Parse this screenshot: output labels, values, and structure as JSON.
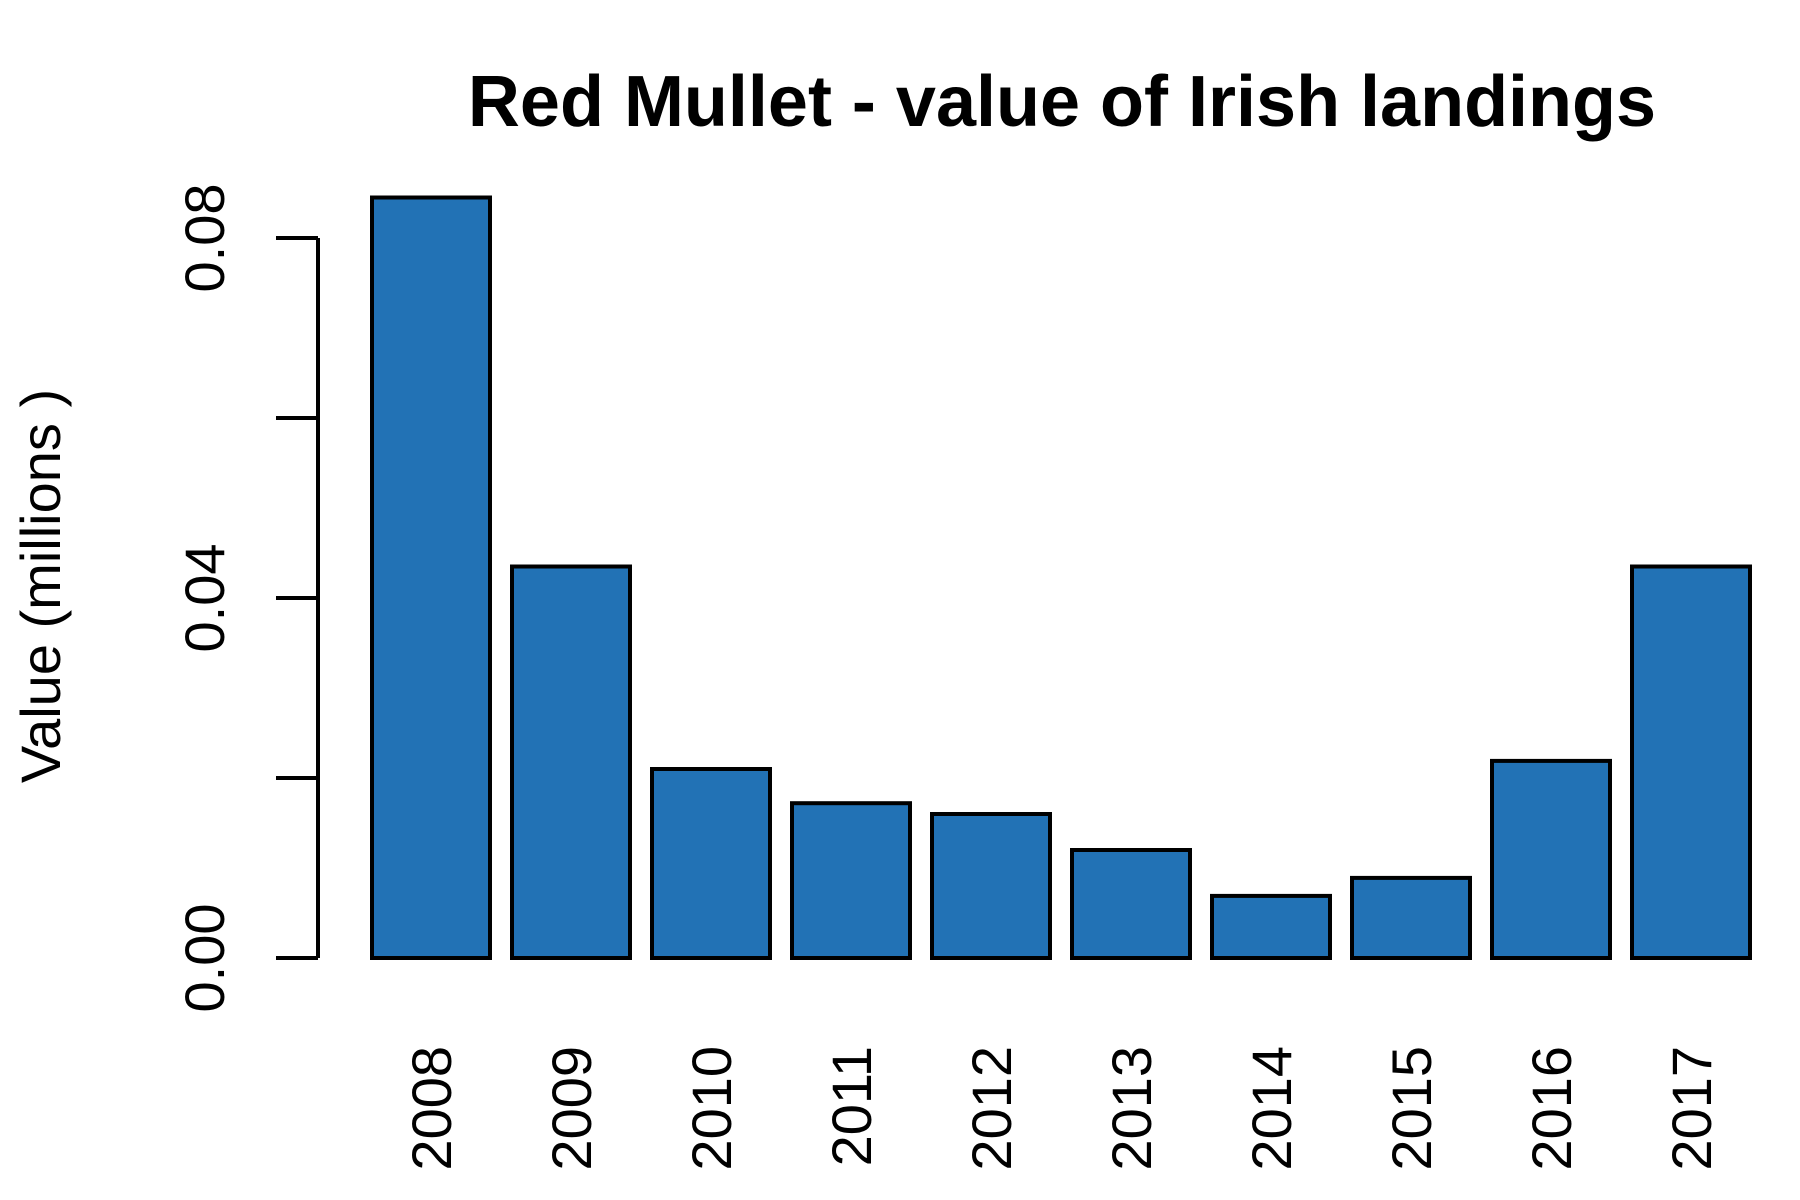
{
  "chart_data": {
    "type": "bar",
    "title": "Red Mullet - value of Irish landings",
    "xlabel": "",
    "ylabel": "Value (millions )",
    "categories": [
      "2008",
      "2009",
      "2010",
      "2011",
      "2012",
      "2013",
      "2014",
      "2015",
      "2016",
      "2017"
    ],
    "values": [
      0.0845,
      0.0435,
      0.021,
      0.0172,
      0.016,
      0.012,
      0.0069,
      0.0089,
      0.0219,
      0.0435
    ],
    "ylim": [
      0,
      0.08
    ],
    "yticks": [
      0,
      0.02,
      0.04,
      0.06,
      0.08
    ],
    "ytick_labels": [
      "0.00",
      "",
      "0.04",
      "",
      "0.08"
    ],
    "bar_color": "#2272B5",
    "grid": false,
    "legend": "none"
  }
}
